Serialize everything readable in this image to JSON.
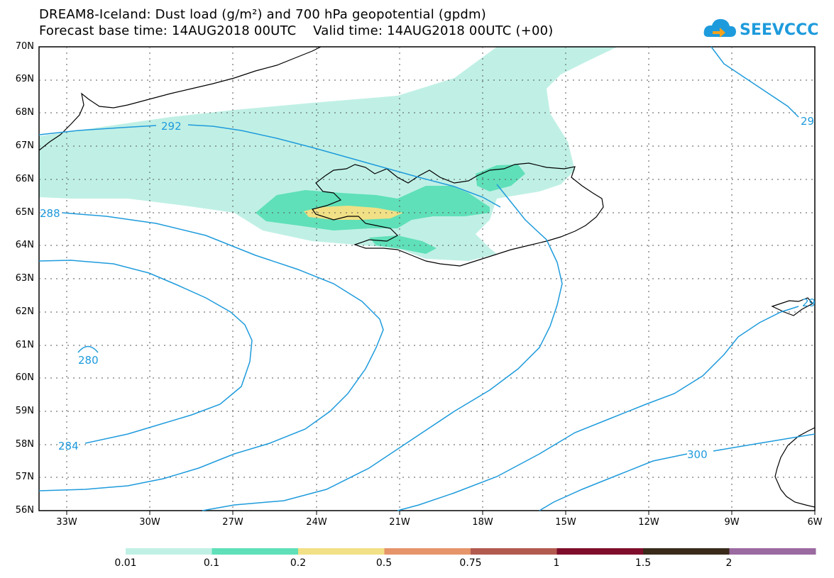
{
  "title": {
    "line1": "DREAM8-Iceland: Dust load (g/m²) and 700 hPa geopotential (gpdm)",
    "line2": "Forecast base time: 14AUG2018 00UTC    Valid time: 14AUG2018 00UTC (+00)"
  },
  "logo": {
    "text": "SEEVCCC",
    "icon": "cloud-logo-icon",
    "color": "#1e9bdc"
  },
  "latitude_labels": [
    "70N",
    "69N",
    "68N",
    "67N",
    "66N",
    "65N",
    "64N",
    "63N",
    "62N",
    "61N",
    "60N",
    "59N",
    "58N",
    "57N",
    "56N"
  ],
  "longitude_labels": [
    "33W",
    "30W",
    "27W",
    "24W",
    "21W",
    "18W",
    "15W",
    "12W",
    "9W",
    "6W"
  ],
  "contour_labels": {
    "c292": "292",
    "c288": "288",
    "c284": "284",
    "c280": "280",
    "c300": "300",
    "c29a": "29",
    "c29b": "29"
  },
  "colorbar": {
    "labels": [
      "0.01",
      "0.1",
      "0.2",
      "0.5",
      "0.75",
      "1",
      "1.5",
      "2"
    ],
    "colors": [
      "#c0f0e5",
      "#5fe0b8",
      "#f1e085",
      "#e6946a",
      "#b35a4f",
      "#7e0d2c",
      "#3a2a1a",
      "#9a6aa0"
    ]
  },
  "colors": {
    "contour": "#1e9bdc",
    "dust_low": "#c0f0e5",
    "dust_mid": "#5fe0b8",
    "dust_high": "#f1e085"
  }
}
